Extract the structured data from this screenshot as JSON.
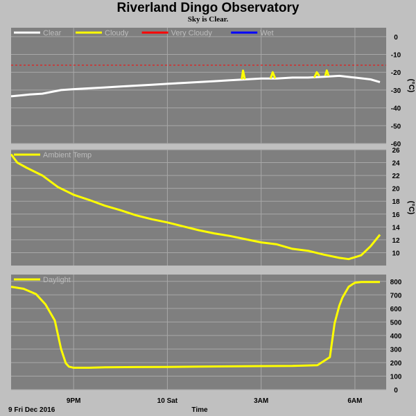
{
  "header": {
    "title": "Riverland Dingo Observatory",
    "subtitle": "Sky is Clear."
  },
  "colors": {
    "background": "#c0c0c0",
    "panel": "#7f7f7f",
    "grid": "#a8a8a8",
    "clear": "#ffffff",
    "cloudy": "#ffff00",
    "very_cloudy": "#ff0000",
    "wet": "#0000ff"
  },
  "chart_data": [
    {
      "type": "line",
      "ylabel": "(°C)",
      "ylim": [
        -60,
        5
      ],
      "yticks": [
        0,
        -10,
        -20,
        -30,
        -40,
        -50,
        -60
      ],
      "threshold": {
        "name": "Very Cloudy",
        "y": -16
      },
      "legend": [
        {
          "name": "Clear",
          "color": "#ffffff"
        },
        {
          "name": "Cloudy",
          "color": "#ffff00"
        },
        {
          "name": "Very Cloudy",
          "color": "#ff0000"
        },
        {
          "name": "Wet",
          "color": "#0000ff"
        }
      ],
      "series": [
        {
          "name": "Clear",
          "color": "#ffffff",
          "x": [
            0,
            0.3,
            0.6,
            1,
            1.3,
            1.6,
            2,
            2.5,
            3,
            3.5,
            4,
            4.5,
            5,
            5.5,
            6,
            6.5,
            7,
            7.5,
            8,
            8.5,
            9,
            9.5,
            10,
            10.5,
            11,
            11.5,
            11.8
          ],
          "y": [
            -33.5,
            -33,
            -32.5,
            -32,
            -31,
            -30,
            -29.5,
            -29,
            -28.5,
            -28,
            -27.5,
            -27,
            -26.5,
            -26,
            -25.5,
            -25,
            -24.5,
            -24,
            -23.5,
            -23.5,
            -23,
            -23,
            -22.5,
            -22,
            -23,
            -24,
            -25.5
          ]
        },
        {
          "name": "Cloudy",
          "color": "#ffff00",
          "segments": [
            {
              "x": [
                7.38,
                7.42,
                7.48
              ],
              "y": [
                -24,
                -19,
                -24
              ]
            },
            {
              "x": [
                8.3,
                8.37,
                8.45
              ],
              "y": [
                -23.5,
                -20,
                -23.5
              ]
            },
            {
              "x": [
                9.7,
                9.78,
                9.86
              ],
              "y": [
                -23,
                -20,
                -22
              ]
            },
            {
              "x": [
                10.05,
                10.1,
                10.16
              ],
              "y": [
                -22,
                -19,
                -22
              ]
            }
          ]
        }
      ]
    },
    {
      "type": "line",
      "ylabel": "(°C)",
      "ylim": [
        8,
        26
      ],
      "yticks": [
        26,
        24,
        22,
        20,
        18,
        16,
        14,
        12,
        10
      ],
      "legend": [
        {
          "name": "Ambient Temp",
          "color": "#ffff00"
        }
      ],
      "series": [
        {
          "name": "Ambient Temp",
          "color": "#ffff00",
          "x": [
            0,
            0.2,
            0.5,
            1,
            1.5,
            2,
            2.5,
            3,
            3.5,
            4,
            4.5,
            5,
            5.5,
            6,
            6.5,
            7,
            7.5,
            8,
            8.5,
            9,
            9.5,
            10,
            10.5,
            10.8,
            11.2,
            11.5,
            11.8
          ],
          "y": [
            25.3,
            24,
            23.2,
            22,
            20.2,
            19,
            18.2,
            17.3,
            16.6,
            15.8,
            15.2,
            14.7,
            14.1,
            13.5,
            13,
            12.6,
            12.1,
            11.6,
            11.3,
            10.6,
            10.3,
            9.7,
            9.2,
            9,
            9.6,
            11,
            12.8
          ]
        }
      ]
    },
    {
      "type": "line",
      "ylim": [
        0,
        850
      ],
      "yticks": [
        800,
        700,
        600,
        500,
        400,
        300,
        200,
        100,
        0
      ],
      "legend": [
        {
          "name": "Daylight",
          "color": "#ffff00"
        }
      ],
      "series": [
        {
          "name": "Daylight",
          "color": "#ffff00",
          "x": [
            0,
            0.4,
            0.8,
            1.1,
            1.4,
            1.6,
            1.75,
            1.85,
            2,
            2.5,
            3,
            4,
            5,
            6,
            7,
            8,
            9,
            9.8,
            10.2,
            10.35,
            10.5,
            10.6,
            10.8,
            11,
            11.2,
            11.5,
            11.8
          ],
          "y": [
            760,
            745,
            705,
            630,
            510,
            300,
            195,
            170,
            162,
            162,
            165,
            167,
            168,
            170,
            172,
            174,
            175,
            180,
            240,
            490,
            620,
            680,
            760,
            790,
            795,
            795,
            795
          ]
        }
      ]
    }
  ],
  "xaxis": {
    "xlim": [
      0,
      12
    ],
    "ticks": [
      {
        "x": 2,
        "label": "9PM"
      },
      {
        "x": 5,
        "label": "10 Sat"
      },
      {
        "x": 8,
        "label": "3AM"
      },
      {
        "x": 11,
        "label": "6AM"
      }
    ],
    "start_label": "9 Fri Dec 2016",
    "label": "Time"
  }
}
